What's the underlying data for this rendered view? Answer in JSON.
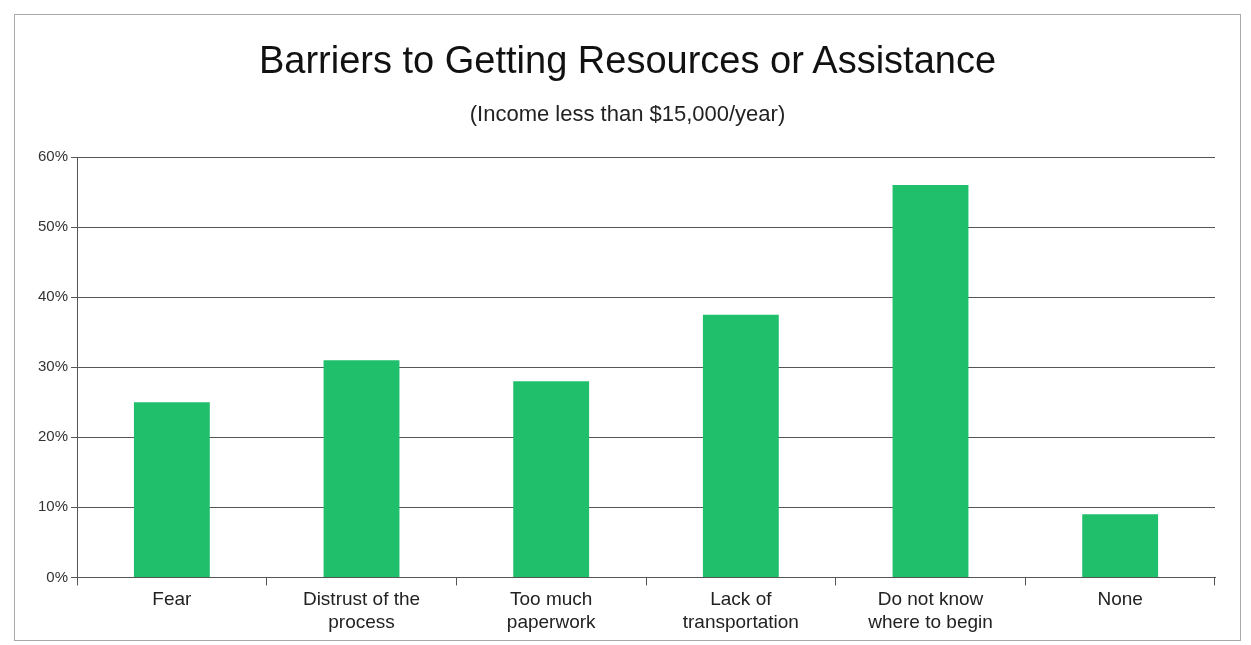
{
  "chart_data": {
    "type": "bar",
    "title": "Barriers to Getting Resources or Assistance",
    "subtitle": "(Income less than $15,000/year)",
    "categories": [
      "Fear",
      "Distrust of the process",
      "Too much paperwork",
      "Lack of transportation",
      "Do not know where to begin",
      "None"
    ],
    "values": [
      25,
      31,
      28,
      37.5,
      56,
      9
    ],
    "color": "#1fbf6c",
    "ylim": [
      0,
      60
    ],
    "yticks": [
      {
        "value": 0,
        "label": "0%"
      },
      {
        "value": 10,
        "label": "10%"
      },
      {
        "value": 20,
        "label": "20%"
      },
      {
        "value": 30,
        "label": "30%"
      },
      {
        "value": 40,
        "label": "40%"
      },
      {
        "value": 50,
        "label": "50%"
      },
      {
        "value": 60,
        "label": "60%"
      }
    ],
    "grid": "y",
    "legend": false
  }
}
